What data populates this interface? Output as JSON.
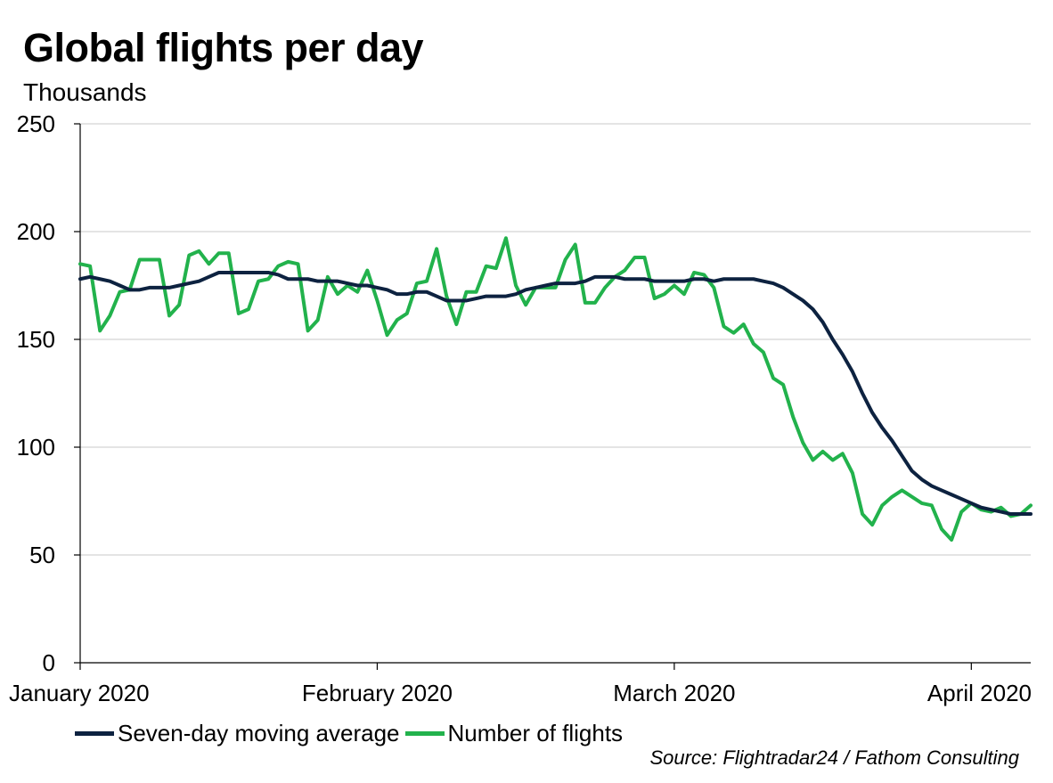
{
  "chart_data": {
    "type": "line",
    "title": "Global flights per day",
    "ylabel": "Thousands",
    "ylim": [
      0,
      250
    ],
    "yticks": [
      "0",
      "50",
      "100",
      "150",
      "200",
      "250"
    ],
    "ytick_values": [
      0,
      50,
      100,
      150,
      200,
      250
    ],
    "xlim_days": [
      0,
      96
    ],
    "xticks": [
      {
        "label": "January 2020",
        "day": 0
      },
      {
        "label": "February 2020",
        "day": 30
      },
      {
        "label": "March 2020",
        "day": 60
      },
      {
        "label": "April 2020",
        "day": 90
      }
    ],
    "grid": true,
    "legend_position": "bottom",
    "series": [
      {
        "name": "Seven-day moving average",
        "color": "#0d2240",
        "values": [
          178,
          179,
          178,
          177,
          175,
          173,
          173,
          174,
          174,
          174,
          175,
          176,
          177,
          179,
          181,
          181,
          181,
          181,
          181,
          181,
          180,
          178,
          178,
          178,
          177,
          177,
          177,
          176,
          175,
          175,
          174,
          173,
          171,
          171,
          172,
          172,
          170,
          168,
          168,
          168,
          169,
          170,
          170,
          170,
          171,
          173,
          174,
          175,
          176,
          176,
          176,
          177,
          179,
          179,
          179,
          178,
          178,
          178,
          177,
          177,
          177,
          177,
          178,
          178,
          177,
          178,
          178,
          178,
          178,
          177,
          176,
          174,
          171,
          168,
          164,
          158,
          150,
          143,
          135,
          125,
          116,
          109,
          103,
          96,
          89,
          85,
          82,
          80,
          78,
          76,
          74,
          72,
          71,
          70,
          69,
          69,
          69
        ]
      },
      {
        "name": "Number of flights",
        "color": "#22b24c",
        "values": [
          185,
          184,
          154,
          161,
          172,
          173,
          187,
          187,
          187,
          161,
          166,
          189,
          191,
          185,
          190,
          190,
          162,
          164,
          177,
          178,
          184,
          186,
          185,
          154,
          159,
          179,
          171,
          175,
          172,
          182,
          168,
          152,
          159,
          162,
          176,
          177,
          192,
          170,
          157,
          172,
          172,
          184,
          183,
          197,
          175,
          166,
          174,
          174,
          174,
          187,
          194,
          167,
          167,
          174,
          179,
          182,
          188,
          188,
          169,
          171,
          175,
          171,
          181,
          180,
          174,
          156,
          153,
          157,
          148,
          144,
          132,
          129,
          114,
          102,
          94,
          98,
          94,
          97,
          88,
          69,
          64,
          73,
          77,
          80,
          77,
          74,
          73,
          62,
          57,
          70,
          74,
          71,
          70,
          72,
          68,
          69,
          73
        ]
      }
    ]
  },
  "source": "Source: Flightradar24 / Fathom Consulting"
}
